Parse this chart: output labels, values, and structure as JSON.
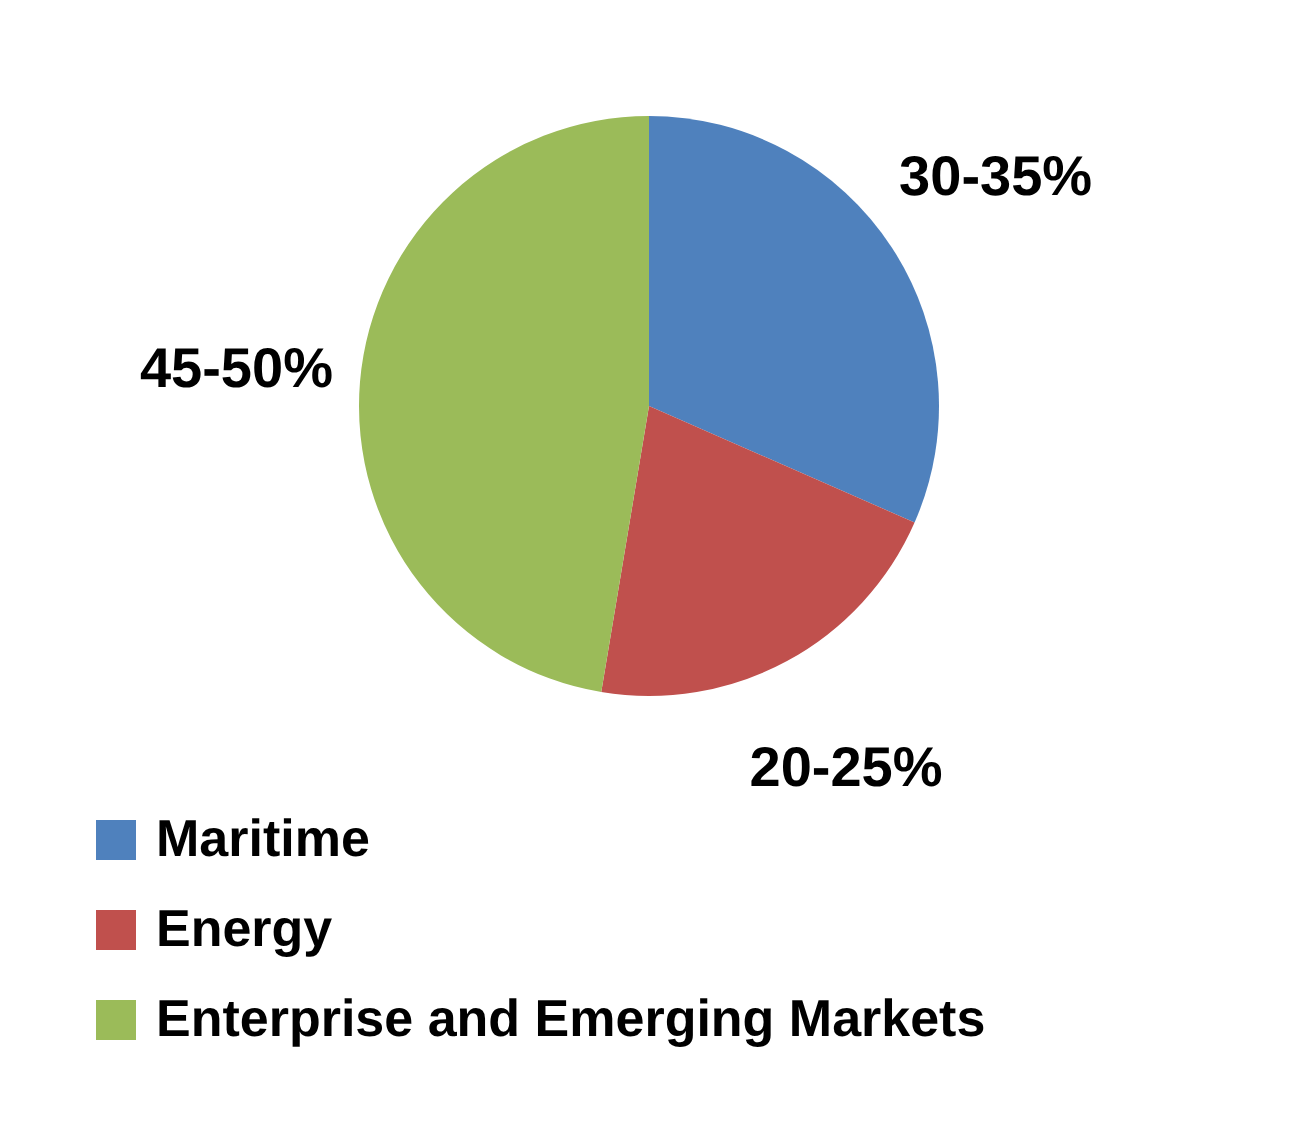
{
  "chart_data": {
    "type": "pie",
    "categories": [
      "Maritime",
      "Energy",
      "Enterprise and Emerging Markets"
    ],
    "values": [
      30,
      20,
      45
    ],
    "value_labels": [
      "30-35%",
      "20-25%",
      "45-50%"
    ],
    "colors": [
      "#4f81bd",
      "#c0504d",
      "#9bbb59"
    ],
    "legend": "bottom"
  }
}
